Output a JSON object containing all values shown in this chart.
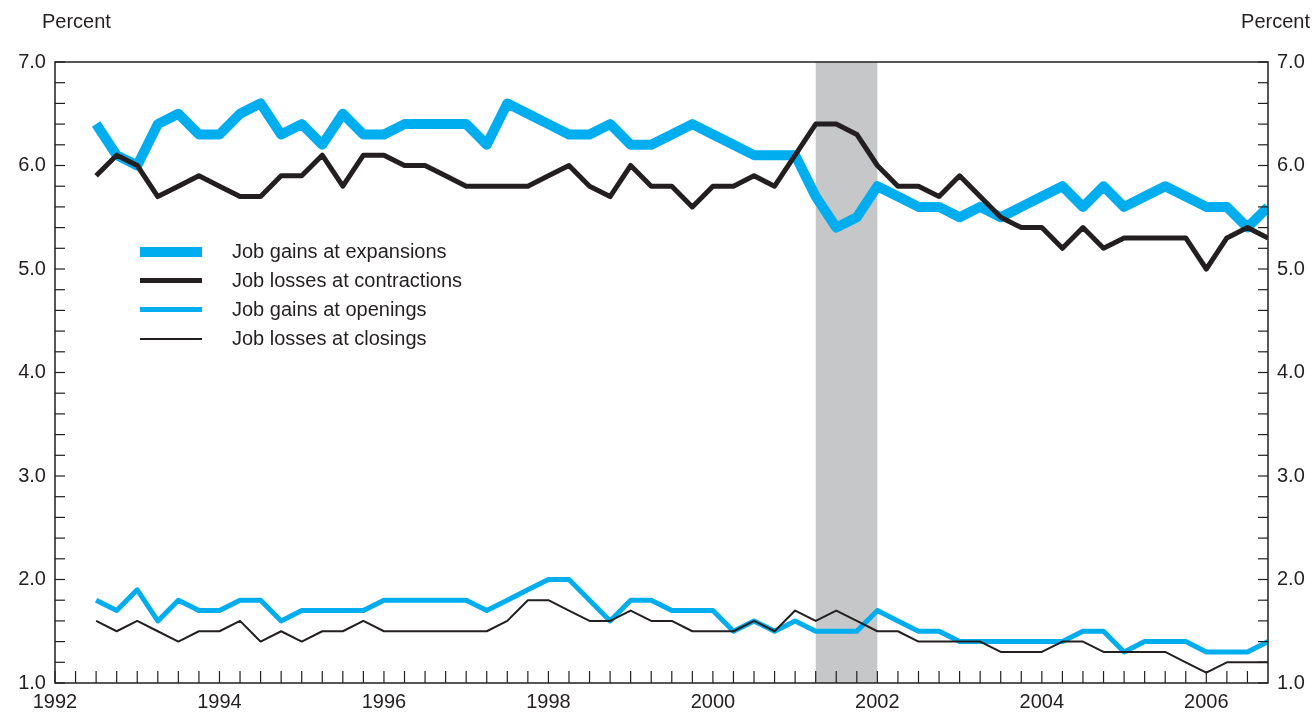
{
  "chart_data": {
    "type": "line",
    "ylabel": "Percent",
    "y2label": "Percent",
    "x": [
      1992.5,
      1992.75,
      1993,
      1993.25,
      1993.5,
      1993.75,
      1994,
      1994.25,
      1994.5,
      1994.75,
      1995,
      1995.25,
      1995.5,
      1995.75,
      1996,
      1996.25,
      1996.5,
      1996.75,
      1997,
      1997.25,
      1997.5,
      1997.75,
      1998,
      1998.25,
      1998.5,
      1998.75,
      1999,
      1999.25,
      1999.5,
      1999.75,
      2000,
      2000.25,
      2000.5,
      2000.75,
      2001,
      2001.25,
      2001.5,
      2001.75,
      2002,
      2002.25,
      2002.5,
      2002.75,
      2003,
      2003.25,
      2003.5,
      2003.75,
      2004,
      2004.25,
      2004.5,
      2004.75,
      2005,
      2005.25,
      2005.5,
      2005.75,
      2006,
      2006.25,
      2006.5,
      2006.75
    ],
    "series": [
      {
        "name": "Job gains at expansions",
        "color": "#00aeef",
        "values": [
          6.4,
          6.1,
          6.0,
          6.4,
          6.5,
          6.3,
          6.3,
          6.5,
          6.6,
          6.3,
          6.4,
          6.2,
          6.5,
          6.3,
          6.3,
          6.4,
          6.4,
          6.4,
          6.4,
          6.2,
          6.6,
          6.5,
          6.4,
          6.3,
          6.3,
          6.4,
          6.2,
          6.2,
          6.3,
          6.4,
          6.3,
          6.2,
          6.1,
          6.1,
          6.1,
          5.7,
          5.4,
          5.5,
          5.8,
          5.7,
          5.6,
          5.6,
          5.5,
          5.6,
          5.5,
          5.6,
          5.7,
          5.8,
          5.6,
          5.8,
          5.6,
          5.7,
          5.8,
          5.7,
          5.6,
          5.6,
          5.4,
          5.6
        ]
      },
      {
        "name": "Job losses at contractions",
        "color": "#231f20",
        "values": [
          5.9,
          6.1,
          6.0,
          5.7,
          5.8,
          5.9,
          5.8,
          5.7,
          5.7,
          5.9,
          5.9,
          6.1,
          5.8,
          6.1,
          6.1,
          6.0,
          6.0,
          5.9,
          5.8,
          5.8,
          5.8,
          5.8,
          5.9,
          6.0,
          5.8,
          5.7,
          6.0,
          5.8,
          5.8,
          5.6,
          5.8,
          5.8,
          5.9,
          5.8,
          6.1,
          6.4,
          6.4,
          6.3,
          6.0,
          5.8,
          5.8,
          5.7,
          5.9,
          5.7,
          5.5,
          5.4,
          5.4,
          5.2,
          5.4,
          5.2,
          5.3,
          5.3,
          5.3,
          5.3,
          5.0,
          5.3,
          5.4,
          5.3
        ]
      },
      {
        "name": "Job gains at openings",
        "color": "#00aeef",
        "values": [
          1.8,
          1.7,
          1.9,
          1.6,
          1.8,
          1.7,
          1.7,
          1.8,
          1.8,
          1.6,
          1.7,
          1.7,
          1.7,
          1.7,
          1.8,
          1.8,
          1.8,
          1.8,
          1.8,
          1.7,
          1.8,
          1.9,
          2.0,
          2.0,
          1.8,
          1.6,
          1.8,
          1.8,
          1.7,
          1.7,
          1.7,
          1.5,
          1.6,
          1.5,
          1.6,
          1.5,
          1.5,
          1.5,
          1.7,
          1.6,
          1.5,
          1.5,
          1.4,
          1.4,
          1.4,
          1.4,
          1.4,
          1.4,
          1.5,
          1.5,
          1.3,
          1.4,
          1.4,
          1.4,
          1.3,
          1.3,
          1.3,
          1.4
        ]
      },
      {
        "name": "Job losses at closings",
        "color": "#231f20",
        "values": [
          1.6,
          1.5,
          1.6,
          1.5,
          1.4,
          1.5,
          1.5,
          1.6,
          1.4,
          1.5,
          1.4,
          1.5,
          1.5,
          1.6,
          1.5,
          1.5,
          1.5,
          1.5,
          1.5,
          1.5,
          1.6,
          1.8,
          1.8,
          1.7,
          1.6,
          1.6,
          1.7,
          1.6,
          1.6,
          1.5,
          1.5,
          1.5,
          1.6,
          1.5,
          1.7,
          1.6,
          1.7,
          1.6,
          1.5,
          1.5,
          1.4,
          1.4,
          1.4,
          1.4,
          1.3,
          1.3,
          1.3,
          1.4,
          1.4,
          1.3,
          1.3,
          1.3,
          1.3,
          1.2,
          1.1,
          1.2,
          1.2,
          1.2
        ]
      }
    ],
    "xlim": [
      1992,
      2006.75
    ],
    "xticks": [
      1992,
      {
        "value": 1992.25,
        "label": null
      },
      {
        "value": 1992.5,
        "label": null
      },
      {
        "value": 1992.75,
        "label": null
      },
      {
        "value": 1993,
        "label": null
      },
      {
        "value": 1993.25,
        "label": null
      },
      {
        "value": 1993.5,
        "label": null
      },
      {
        "value": 1993.75,
        "label": null
      },
      1994,
      {
        "value": 1994.25,
        "label": null
      },
      {
        "value": 1994.5,
        "label": null
      },
      {
        "value": 1994.75,
        "label": null
      },
      {
        "value": 1995,
        "label": null
      },
      {
        "value": 1995.25,
        "label": null
      },
      {
        "value": 1995.5,
        "label": null
      },
      {
        "value": 1995.75,
        "label": null
      },
      1996,
      {
        "value": 1996.25,
        "label": null
      },
      {
        "value": 1996.5,
        "label": null
      },
      {
        "value": 1996.75,
        "label": null
      },
      {
        "value": 1997,
        "label": null
      },
      {
        "value": 1997.25,
        "label": null
      },
      {
        "value": 1997.5,
        "label": null
      },
      {
        "value": 1997.75,
        "label": null
      },
      1998,
      {
        "value": 1998.25,
        "label": null
      },
      {
        "value": 1998.5,
        "label": null
      },
      {
        "value": 1998.75,
        "label": null
      },
      {
        "value": 1999,
        "label": null
      },
      {
        "value": 1999.25,
        "label": null
      },
      {
        "value": 1999.5,
        "label": null
      },
      {
        "value": 1999.75,
        "label": null
      },
      2000,
      {
        "value": 2000.25,
        "label": null
      },
      {
        "value": 2000.5,
        "label": null
      },
      {
        "value": 2000.75,
        "label": null
      },
      {
        "value": 2001,
        "label": null
      },
      {
        "value": 2001.25,
        "label": null
      },
      {
        "value": 2001.5,
        "label": null
      },
      {
        "value": 2001.75,
        "label": null
      },
      2002,
      {
        "value": 2002.25,
        "label": null
      },
      {
        "value": 2002.5,
        "label": null
      },
      {
        "value": 2002.75,
        "label": null
      },
      {
        "value": 2003,
        "label": null
      },
      {
        "value": 2003.25,
        "label": null
      },
      {
        "value": 2003.5,
        "label": null
      },
      {
        "value": 2003.75,
        "label": null
      },
      2004,
      {
        "value": 2004.25,
        "label": null
      },
      {
        "value": 2004.5,
        "label": null
      },
      {
        "value": 2004.75,
        "label": null
      },
      {
        "value": 2005,
        "label": null
      },
      {
        "value": 2005.25,
        "label": null
      },
      {
        "value": 2005.5,
        "label": null
      },
      {
        "value": 2005.75,
        "label": null
      },
      2006,
      {
        "value": 2006.25,
        "label": null
      },
      {
        "value": 2006.5,
        "label": null
      }
    ],
    "ylim": [
      1,
      7
    ],
    "yticks": [
      {
        "value": 1,
        "label": "1.0"
      },
      {
        "value": 1.2,
        "label": null
      },
      {
        "value": 1.4,
        "label": null
      },
      {
        "value": 1.6,
        "label": null
      },
      {
        "value": 1.8,
        "label": null
      },
      {
        "value": 2,
        "label": "2.0"
      },
      {
        "value": 2.2,
        "label": null
      },
      {
        "value": 2.4,
        "label": null
      },
      {
        "value": 2.6,
        "label": null
      },
      {
        "value": 2.8,
        "label": null
      },
      {
        "value": 3,
        "label": "3.0"
      },
      {
        "value": 3.2,
        "label": null
      },
      {
        "value": 3.4,
        "label": null
      },
      {
        "value": 3.6,
        "label": null
      },
      {
        "value": 3.8,
        "label": null
      },
      {
        "value": 4,
        "label": "4.0"
      },
      {
        "value": 4.2,
        "label": null
      },
      {
        "value": 4.4,
        "label": null
      },
      {
        "value": 4.6,
        "label": null
      },
      {
        "value": 4.8,
        "label": null
      },
      {
        "value": 5,
        "label": "5.0"
      },
      {
        "value": 5.2,
        "label": null
      },
      {
        "value": 5.4,
        "label": null
      },
      {
        "value": 5.6,
        "label": null
      },
      {
        "value": 5.8,
        "label": null
      },
      {
        "value": 6,
        "label": "6.0"
      },
      {
        "value": 6.2,
        "label": null
      },
      {
        "value": 6.4,
        "label": null
      },
      {
        "value": 6.6,
        "label": null
      },
      {
        "value": 6.8,
        "label": null
      },
      {
        "value": 7,
        "label": "7.0"
      }
    ],
    "y2lim": [
      1,
      7
    ],
    "y2ticks": [
      {
        "value": 1,
        "label": "1.0"
      },
      {
        "value": 1.2,
        "label": null
      },
      {
        "value": 1.4,
        "label": null
      },
      {
        "value": 1.6,
        "label": null
      },
      {
        "value": 1.8,
        "label": null
      },
      {
        "value": 2,
        "label": "2.0"
      },
      {
        "value": 2.2,
        "label": null
      },
      {
        "value": 2.4,
        "label": null
      },
      {
        "value": 2.6,
        "label": null
      },
      {
        "value": 2.8,
        "label": null
      },
      {
        "value": 3,
        "label": "3.0"
      },
      {
        "value": 3.2,
        "label": null
      },
      {
        "value": 3.4,
        "label": null
      },
      {
        "value": 3.6,
        "label": null
      },
      {
        "value": 3.8,
        "label": null
      },
      {
        "value": 4,
        "label": "4.0"
      },
      {
        "value": 4.2,
        "label": null
      },
      {
        "value": 4.4,
        "label": null
      },
      {
        "value": 4.6,
        "label": null
      },
      {
        "value": 4.8,
        "label": null
      },
      {
        "value": 5,
        "label": "5.0"
      },
      {
        "value": 5.2,
        "label": null
      },
      {
        "value": 5.4,
        "label": null
      },
      {
        "value": 5.6,
        "label": null
      },
      {
        "value": 5.8,
        "label": null
      },
      {
        "value": 6,
        "label": "6.0"
      },
      {
        "value": 6.2,
        "label": null
      },
      {
        "value": 6.4,
        "label": null
      },
      {
        "value": 6.6,
        "label": null
      },
      {
        "value": 6.8,
        "label": null
      },
      {
        "value": 7,
        "label": "7.0"
      }
    ],
    "bands": [
      {
        "axis": "x",
        "from": 2001.25,
        "to": 2002,
        "color": "#c6c7c9"
      }
    ],
    "grid": false,
    "legend": "left"
  }
}
